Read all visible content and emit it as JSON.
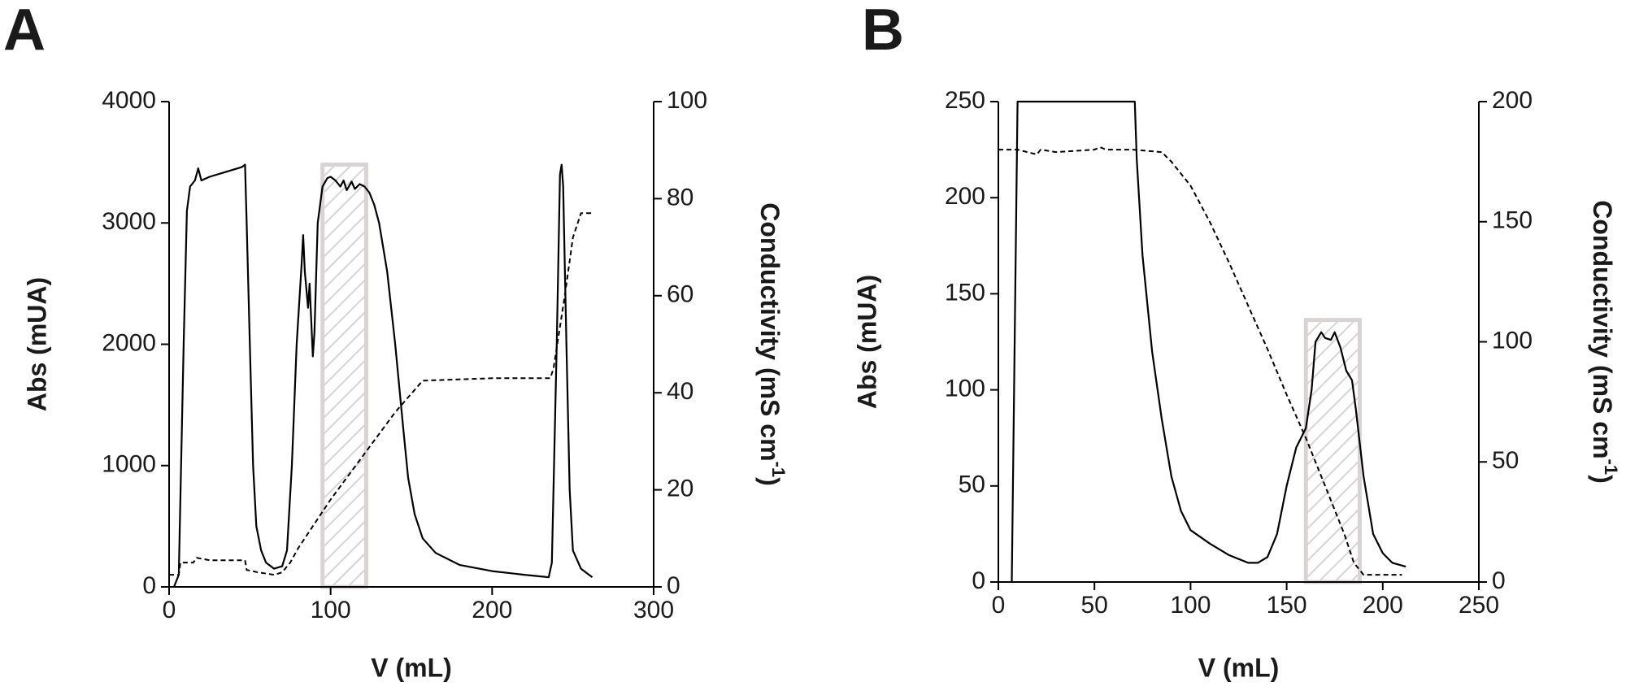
{
  "chart_data": [
    {
      "type": "line",
      "panel": "A",
      "xlabel": "V (mL)",
      "ylabel": "Abs (mUA)",
      "y2label": [
        "Conductivity (mS cm",
        "-1",
        ")"
      ],
      "xlim": [
        0,
        300
      ],
      "xticks": [
        0,
        100,
        200,
        300
      ],
      "ylim": [
        0,
        4000
      ],
      "yticks": [
        0,
        1000,
        2000,
        3000,
        4000
      ],
      "y2lim": [
        0,
        100
      ],
      "y2ticks": [
        0,
        20,
        40,
        60,
        80,
        100
      ],
      "shaded_range": [
        95,
        122
      ],
      "series": [
        {
          "color": "#000000",
          "style": "solid",
          "x": [
            3,
            6,
            9,
            11,
            13,
            16,
            18,
            20,
            25,
            35,
            45,
            47,
            48,
            50,
            52,
            54,
            57,
            60,
            65,
            70,
            73,
            76,
            79,
            82,
            83,
            84,
            86,
            87,
            88,
            89,
            90,
            92,
            95,
            98,
            100,
            103,
            106,
            108,
            110,
            113,
            115,
            118,
            121,
            124,
            127,
            130,
            135,
            140,
            145,
            148,
            152,
            157,
            165,
            180,
            200,
            220,
            235,
            237,
            240,
            242,
            243,
            244,
            246,
            248,
            250,
            255,
            262
          ],
          "values": [
            0,
            100,
            2000,
            3100,
            3300,
            3350,
            3450,
            3350,
            3380,
            3420,
            3460,
            3480,
            3000,
            2000,
            1000,
            500,
            300,
            200,
            150,
            170,
            300,
            1000,
            2000,
            2650,
            2900,
            2600,
            2300,
            2500,
            2200,
            1900,
            2100,
            3000,
            3300,
            3370,
            3380,
            3350,
            3300,
            3350,
            3270,
            3340,
            3280,
            3320,
            3300,
            3250,
            3150,
            3000,
            2600,
            2000,
            1300,
            900,
            600,
            400,
            280,
            180,
            130,
            100,
            80,
            200,
            2000,
            3400,
            3480,
            3300,
            2000,
            800,
            300,
            150,
            80
          ]
        },
        {
          "color": "#000000",
          "style": "dashed",
          "axis": "y2",
          "x": [
            0,
            6,
            7,
            15,
            17,
            25,
            35,
            47,
            48,
            55,
            65,
            70,
            75,
            80,
            100,
            120,
            140,
            157,
            200,
            236,
            238,
            245,
            250,
            255,
            262
          ],
          "values": [
            2.5,
            2.5,
            5,
            5,
            6,
            5.5,
            5.5,
            5.5,
            3.5,
            3,
            2.5,
            3,
            5,
            8,
            18,
            27,
            36,
            42.5,
            43,
            43,
            45,
            60,
            72,
            77,
            77
          ]
        }
      ]
    },
    {
      "type": "line",
      "panel": "B",
      "xlabel": "V (mL)",
      "ylabel": "Abs (mUA)",
      "y2label": [
        "Conductivity (mS cm",
        "-1",
        ")"
      ],
      "xlim": [
        0,
        250
      ],
      "xticks": [
        0,
        50,
        100,
        150,
        200,
        250
      ],
      "ylim": [
        0,
        250
      ],
      "yticks": [
        0,
        50,
        100,
        150,
        200,
        250
      ],
      "y2lim": [
        0,
        200
      ],
      "y2ticks": [
        0,
        50,
        100,
        150,
        200
      ],
      "shaded_range": [
        160,
        188
      ],
      "series": [
        {
          "color": "#000000",
          "style": "solid",
          "x": [
            7,
            10,
            18,
            71,
            72,
            75,
            80,
            85,
            90,
            95,
            100,
            110,
            120,
            130,
            135,
            140,
            145,
            150,
            155,
            160,
            163,
            165,
            168,
            170,
            173,
            175,
            178,
            181,
            184,
            186,
            190,
            195,
            200,
            205,
            212
          ],
          "values": [
            0,
            250,
            250,
            250,
            220,
            170,
            120,
            85,
            55,
            37,
            27,
            20,
            14,
            10,
            10,
            13,
            25,
            50,
            70,
            80,
            100,
            125,
            130,
            127,
            126,
            130,
            122,
            110,
            105,
            90,
            55,
            25,
            15,
            10,
            8
          ]
        },
        {
          "color": "#000000",
          "style": "dashed",
          "axis": "y2",
          "x": [
            0,
            10,
            20,
            22,
            30,
            50,
            53,
            56,
            70,
            85,
            90,
            100,
            110,
            120,
            130,
            140,
            150,
            160,
            170,
            180,
            185,
            190,
            210
          ],
          "values": [
            180,
            180,
            178,
            180,
            179,
            180,
            181,
            180,
            180,
            179,
            175,
            165,
            150,
            133,
            115,
            97,
            78,
            60,
            40,
            20,
            8,
            3,
            3
          ]
        }
      ]
    }
  ]
}
